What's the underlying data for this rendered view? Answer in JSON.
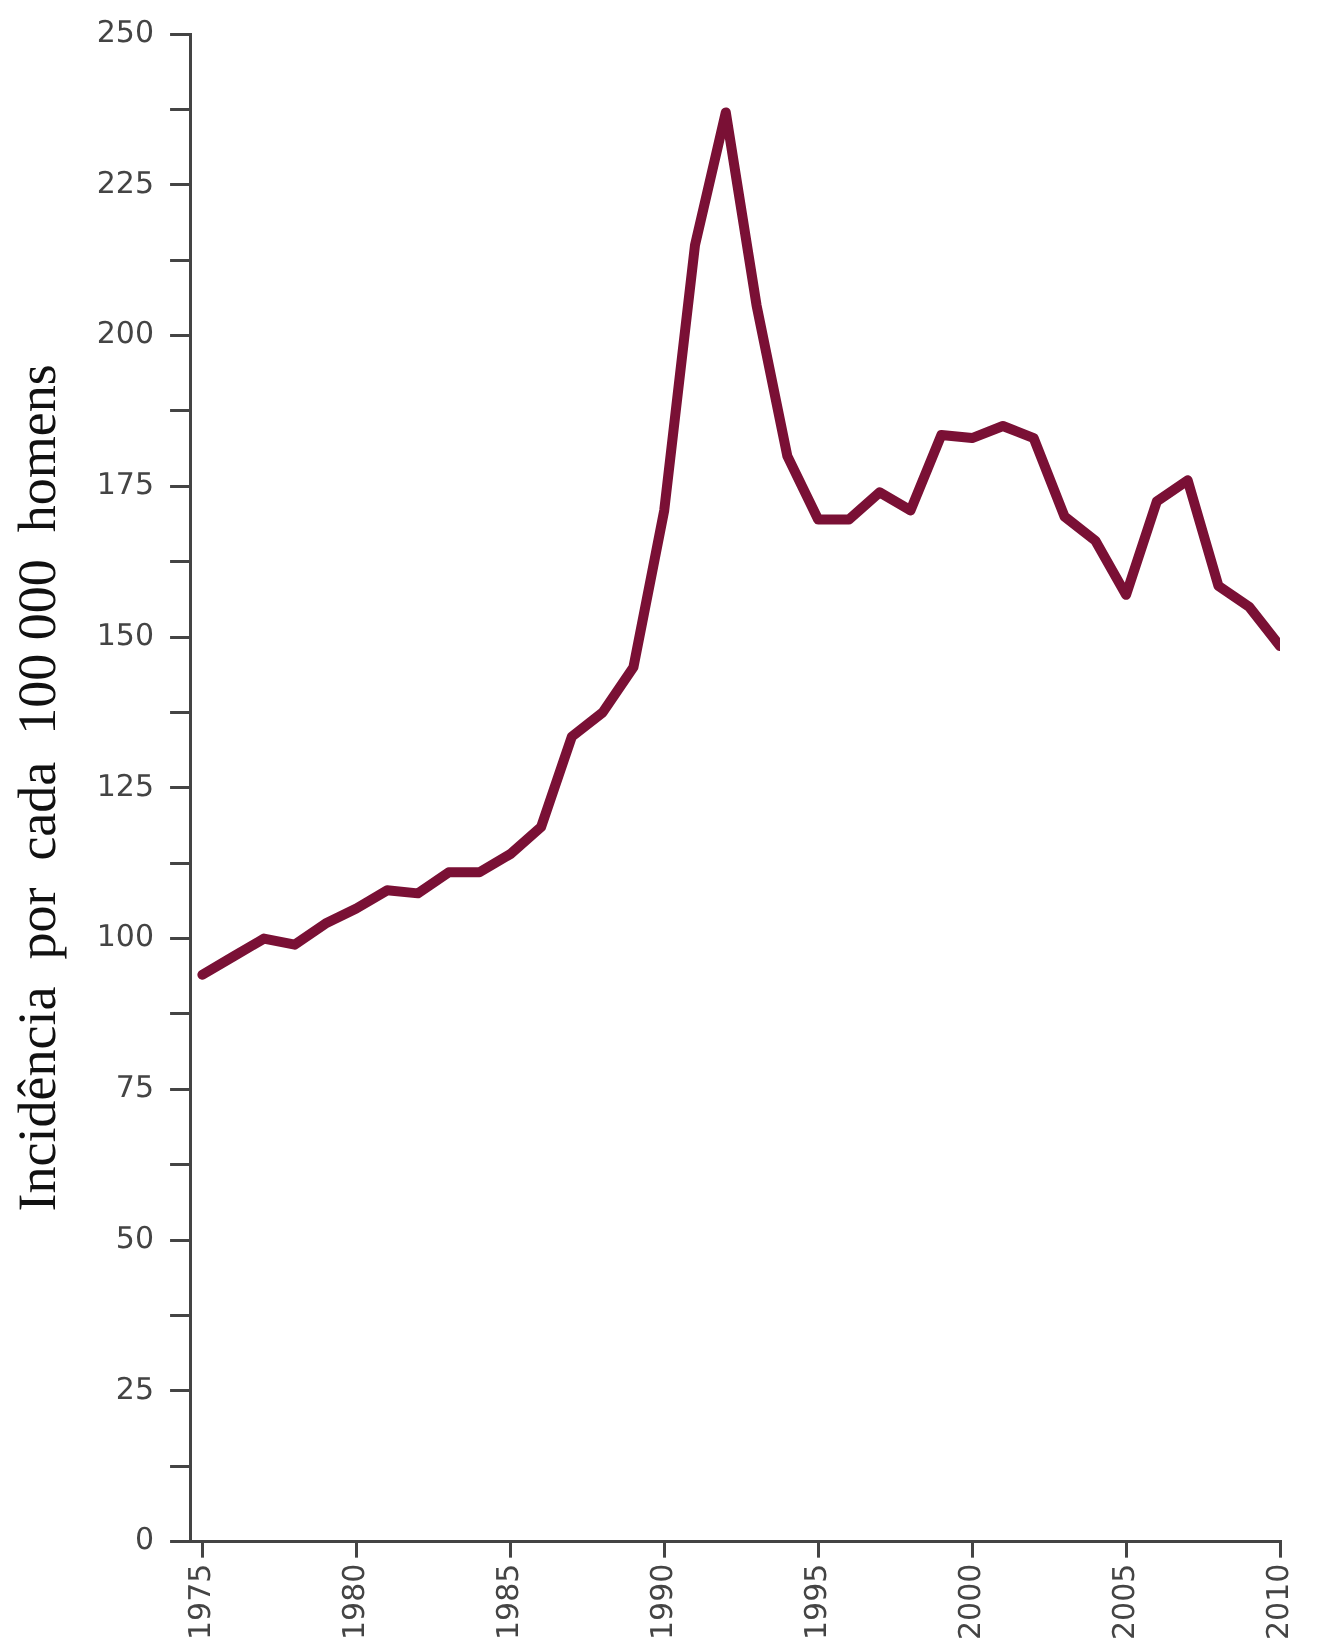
{
  "chart_data": {
    "type": "line",
    "ylabel": "Incidência  por  cada  100 000  homens",
    "x": [
      1975,
      1976,
      1977,
      1978,
      1979,
      1980,
      1981,
      1982,
      1983,
      1984,
      1985,
      1986,
      1987,
      1988,
      1989,
      1990,
      1991,
      1992,
      1993,
      1994,
      1995,
      1996,
      1997,
      1998,
      1999,
      2000,
      2001,
      2002,
      2003,
      2004,
      2005,
      2006,
      2007,
      2008,
      2009,
      2010
    ],
    "series": [
      {
        "color": "#7a1035",
        "values": [
          94,
          97,
          100,
          99,
          102.5,
          105,
          108,
          107.5,
          111,
          111,
          114,
          118.5,
          133.5,
          137.5,
          145,
          171,
          215,
          237,
          205,
          180,
          169.5,
          169.5,
          174,
          171,
          183.5,
          183,
          185,
          183,
          170,
          166,
          157,
          172.5,
          176,
          158.5,
          155,
          148.5
        ]
      }
    ],
    "xlim": [
      1974.6,
      2010
    ],
    "xticks": [
      1975,
      1980,
      1985,
      1990,
      1995,
      2000,
      2005,
      2010
    ],
    "ylim": [
      0,
      250
    ],
    "yticks": [
      0,
      {
        "value": 12.5,
        "label": null
      },
      25,
      {
        "value": 37.5,
        "label": null
      },
      50,
      {
        "value": 62.5,
        "label": null
      },
      75,
      {
        "value": 87.5,
        "label": null
      },
      100,
      {
        "value": 112.5,
        "label": null
      },
      125,
      {
        "value": 137.5,
        "label": null
      },
      150,
      {
        "value": 162.5,
        "label": null
      },
      175,
      {
        "value": 187.5,
        "label": null
      },
      200,
      {
        "value": 212.5,
        "label": null
      },
      225,
      {
        "value": 237.5,
        "label": null
      },
      250
    ],
    "grid": false,
    "legend": false,
    "marker": "none",
    "line_style": "solid"
  }
}
